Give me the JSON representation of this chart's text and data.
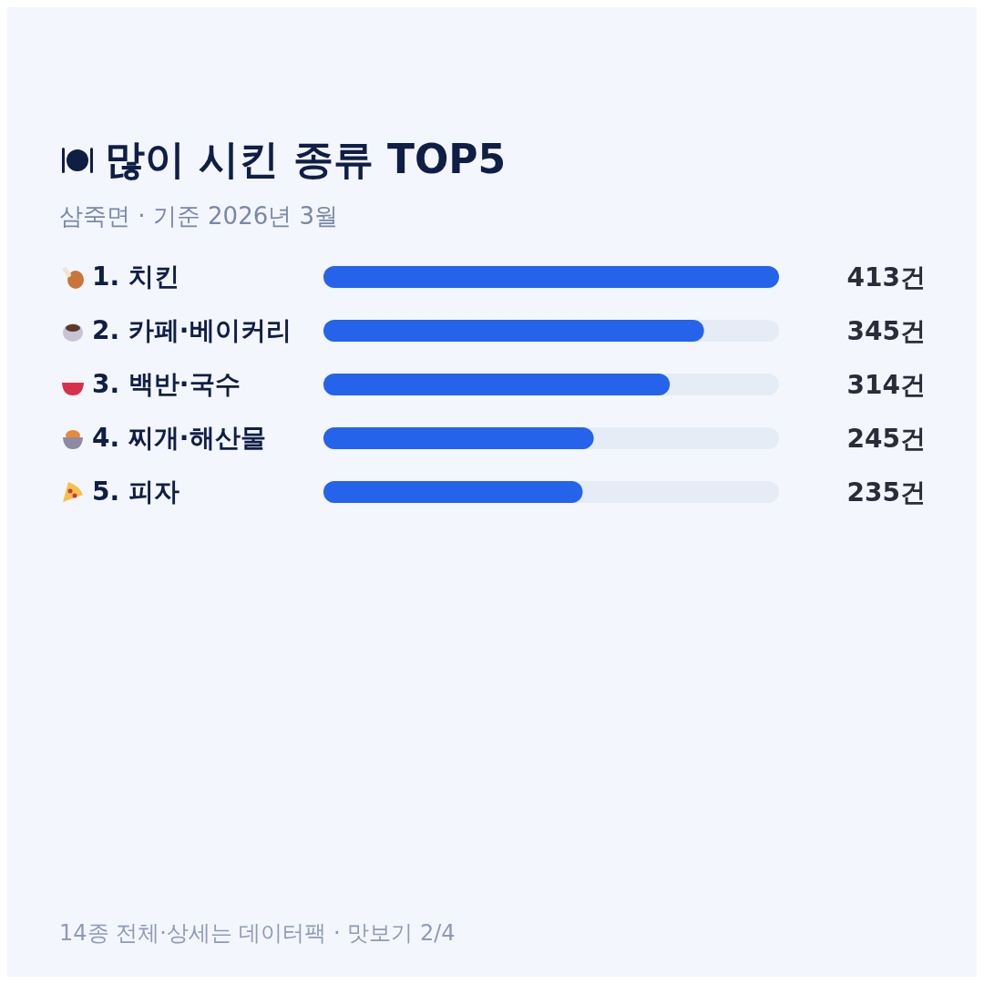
{
  "chart_data": {
    "type": "bar",
    "orientation": "horizontal",
    "title": "많이 시킨 종류 TOP5",
    "subtitle": "삼죽면 · 기준 2026년 3월",
    "categories": [
      "1. 치킨",
      "2. 카페·베이커리",
      "3. 백반·국수",
      "4. 찌개·해산물",
      "5. 피자"
    ],
    "values": [
      413,
      345,
      314,
      245,
      235
    ],
    "value_labels": [
      "413건",
      "345건",
      "314건",
      "245건",
      "235건"
    ],
    "color": "#2563eb",
    "grid": false,
    "legend": false,
    "annotations": [
      "14종 전체·상세는 데이터팩 · 맛보기 2/4"
    ]
  }
}
